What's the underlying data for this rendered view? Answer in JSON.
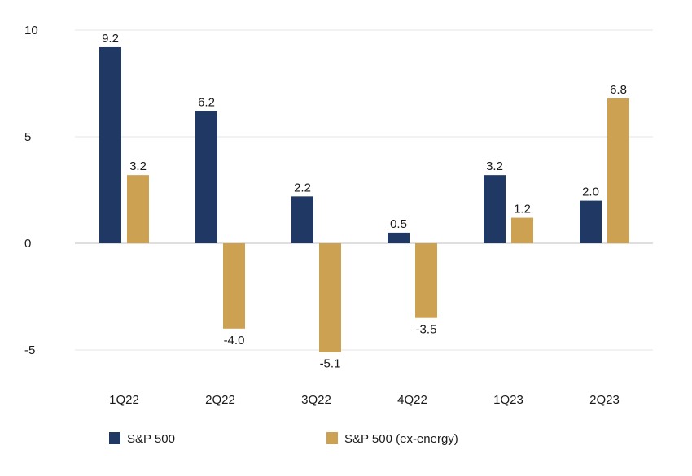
{
  "chart_data": {
    "type": "bar",
    "categories": [
      "1Q22",
      "2Q22",
      "3Q22",
      "4Q22",
      "1Q23",
      "2Q23"
    ],
    "series": [
      {
        "name": "S&P 500",
        "values": [
          9.2,
          6.2,
          2.2,
          0.5,
          3.2,
          2.0
        ],
        "labels": [
          "9.2",
          "6.2",
          "2.2",
          "0.5",
          "3.2",
          "2.0"
        ],
        "color": "#1f3864"
      },
      {
        "name": "S&P 500 (ex-energy)",
        "values": [
          3.2,
          -4.0,
          -5.1,
          -3.5,
          1.2,
          6.8
        ],
        "labels": [
          "3.2",
          "-4.0",
          "-5.1",
          "-3.5",
          "1.2",
          "6.8"
        ],
        "color": "#cca152"
      }
    ],
    "y_ticks": [
      {
        "value": 10,
        "label": "10"
      },
      {
        "value": 5,
        "label": "5"
      },
      {
        "value": 0,
        "label": "0"
      },
      {
        "value": -5,
        "label": "-5"
      }
    ],
    "ylim": [
      -5,
      10
    ],
    "grid": true,
    "legend_position": "bottom-left",
    "title": "",
    "xlabel": "",
    "ylabel": "",
    "gridline_color": "#e6e6e6",
    "zero_line_color": "#cccccc"
  }
}
